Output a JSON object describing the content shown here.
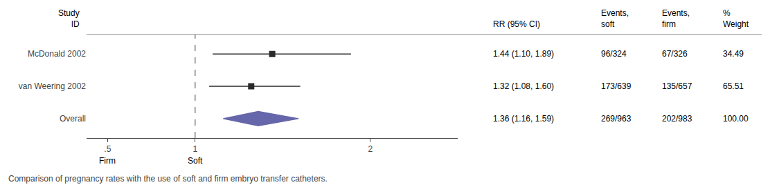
{
  "chart_data": {
    "type": "forest",
    "categories": [
      "McDonald 2002",
      "van Weering 2002",
      "Overall"
    ],
    "values": [
      1.44,
      1.32,
      1.36
    ],
    "ci_lower": [
      1.1,
      1.08,
      1.16
    ],
    "ci_upper": [
      1.89,
      1.6,
      1.59
    ],
    "markers": [
      "square",
      "square",
      "diamond"
    ],
    "colors": [
      "#2a2a2a",
      "#2a2a2a",
      "#6666aa"
    ],
    "category_header": [
      "Study",
      "ID"
    ],
    "columns": [
      {
        "header": [
          "RR (95% CI)"
        ],
        "values": [
          "1.44 (1.10, 1.89)",
          "1.32 (1.08, 1.60)",
          "1.36 (1.16, 1.59)"
        ]
      },
      {
        "header": [
          "Events,",
          "soft"
        ],
        "values": [
          "96/324",
          "173/639",
          "269/963"
        ]
      },
      {
        "header": [
          "Events,",
          "firm"
        ],
        "values": [
          "67/326",
          "135/657",
          "202/983"
        ]
      },
      {
        "header": [
          "%",
          "Weight"
        ],
        "values": [
          "34.49",
          "65.51",
          "100.00"
        ]
      }
    ],
    "xlim": [
      0.38,
      2.5
    ],
    "xticks": [
      {
        "value": 0.5,
        "label": ".5"
      },
      1,
      2
    ],
    "x_annotations": [
      {
        "x": 0.5,
        "text": "Firm"
      },
      {
        "x": 1,
        "text": "Soft"
      }
    ],
    "reference_line": 1,
    "caption": "Comparison of pregnancy rates with the use of soft and firm embryo transfer catheters.",
    "grid": false
  }
}
